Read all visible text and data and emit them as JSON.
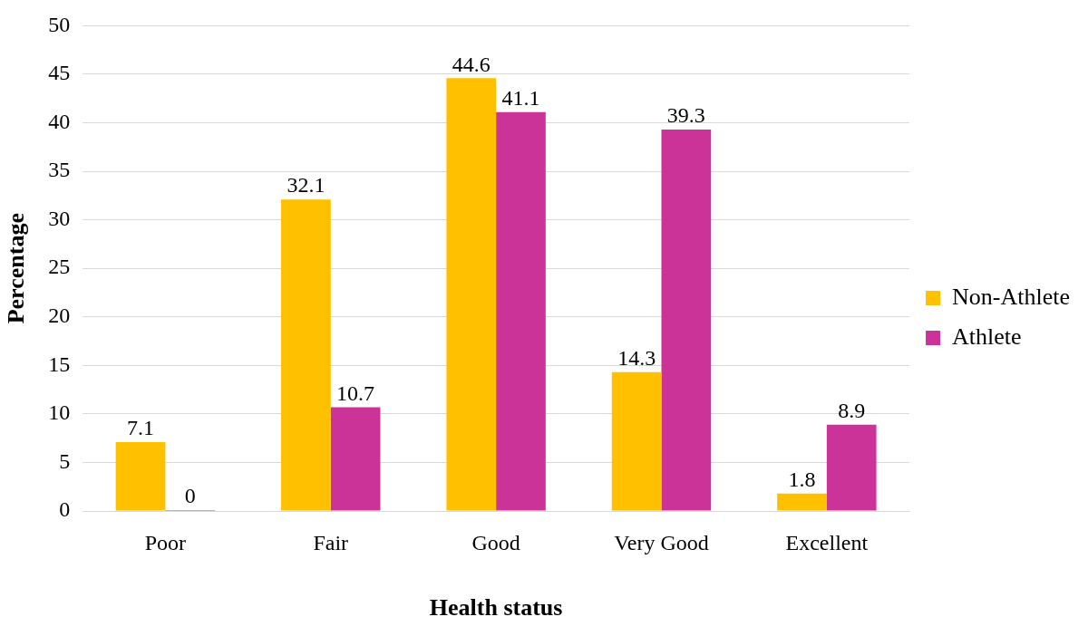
{
  "chart_data": {
    "type": "bar",
    "xlabel": "Health status",
    "ylabel": "Percentage",
    "categories": [
      "Poor",
      "Fair",
      "Good",
      "Very Good",
      "Excellent"
    ],
    "series": [
      {
        "name": "Non-Athlete",
        "color": "#ffc000",
        "values": [
          7.1,
          32.1,
          44.6,
          14.3,
          1.8
        ]
      },
      {
        "name": "Athlete",
        "color": "#cc3399",
        "values": [
          0,
          10.7,
          41.1,
          39.3,
          8.9
        ]
      }
    ],
    "ylim": [
      0,
      50
    ],
    "yticks": [
      0,
      5,
      10,
      15,
      20,
      25,
      30,
      35,
      40,
      45,
      50
    ],
    "grid": "y",
    "legend": "right",
    "data_labels": true
  }
}
